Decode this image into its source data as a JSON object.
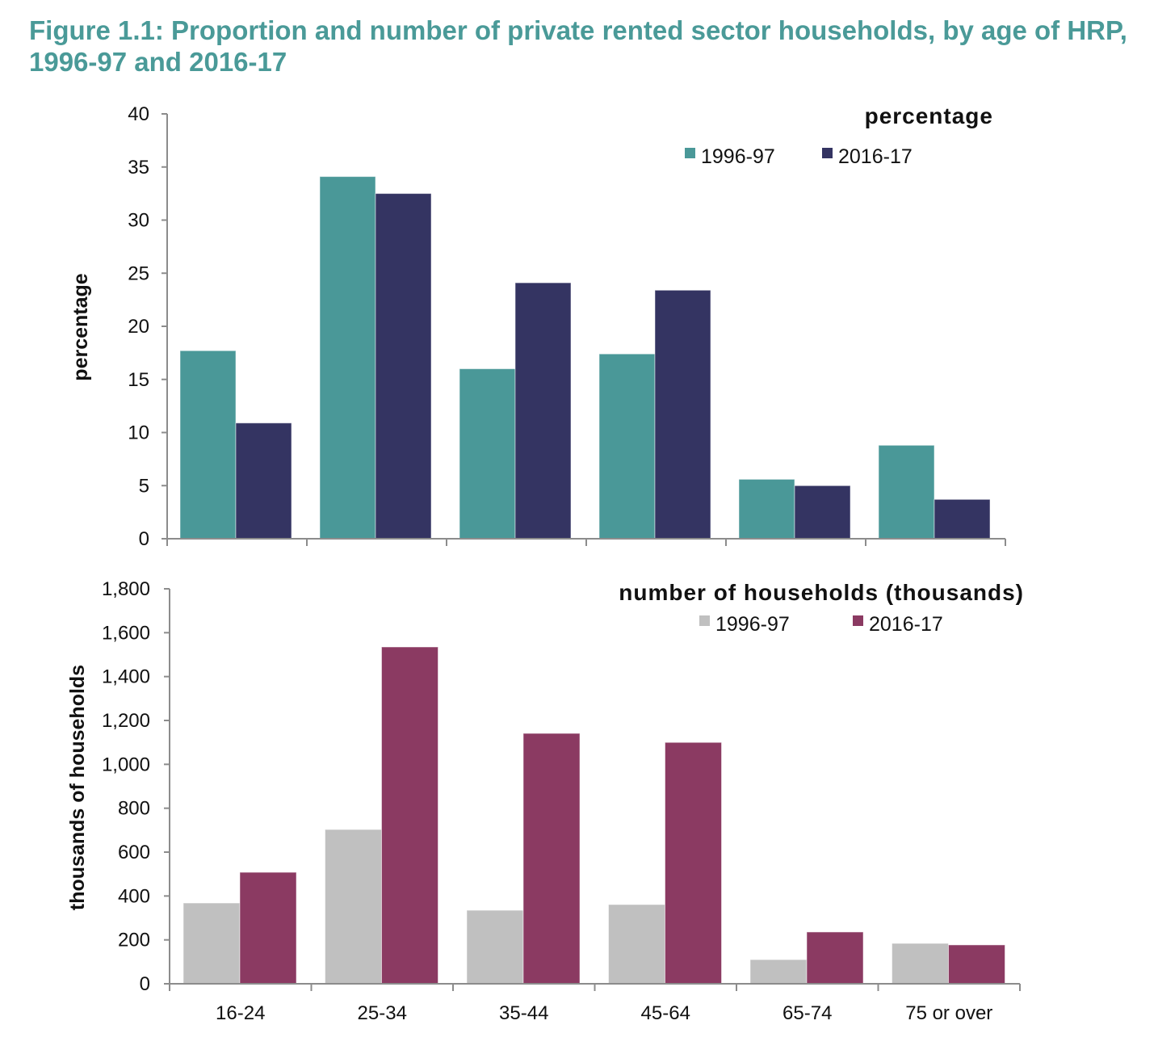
{
  "figure": {
    "title": "Figure 1.1: Proportion and number of private rented sector households, by age of HRP, 1996-97 and 2016-17",
    "title_color": "#4a9a98"
  },
  "chart_data": [
    {
      "type": "bar",
      "title": "percentage",
      "xlabel": "",
      "ylabel": "percentage",
      "ylim": [
        0,
        40
      ],
      "yticks": [
        0,
        5,
        10,
        15,
        20,
        25,
        30,
        35,
        40
      ],
      "ytick_labels": [
        "0",
        "5",
        "10",
        "15",
        "20",
        "25",
        "30",
        "35",
        "40"
      ],
      "grid": false,
      "legend_position": "top-right",
      "categories": [
        "16-24",
        "25-34",
        "35-44",
        "45-64",
        "65-74",
        "75 or over"
      ],
      "show_category_labels": false,
      "series": [
        {
          "name": "1996-97",
          "color": "#4a9898",
          "values": [
            17.7,
            34.1,
            16.0,
            17.4,
            5.6,
            8.8
          ]
        },
        {
          "name": "2016-17",
          "color": "#343462",
          "values": [
            10.9,
            32.5,
            24.1,
            23.4,
            5.0,
            3.7
          ]
        }
      ]
    },
    {
      "type": "bar",
      "title": "number of households (thousands)",
      "xlabel": "",
      "ylabel": "thousands of households",
      "ylim": [
        0,
        1800
      ],
      "yticks": [
        0,
        200,
        400,
        600,
        800,
        1000,
        1200,
        1400,
        1600,
        1800
      ],
      "ytick_labels": [
        "0",
        "200",
        "400",
        "600",
        "800",
        "1,000",
        "1,200",
        "1,400",
        "1,600",
        "1,800"
      ],
      "grid": false,
      "legend_position": "top-right",
      "categories": [
        "16-24",
        "25-34",
        "35-44",
        "45-64",
        "65-74",
        "75 or over"
      ],
      "show_category_labels": true,
      "series": [
        {
          "name": "1996-97",
          "color": "#c0c0c0",
          "values": [
            368,
            703,
            335,
            361,
            110,
            184
          ]
        },
        {
          "name": "2016-17",
          "color": "#8b3a62",
          "values": [
            508,
            1535,
            1141,
            1100,
            236,
            177
          ]
        }
      ]
    }
  ]
}
